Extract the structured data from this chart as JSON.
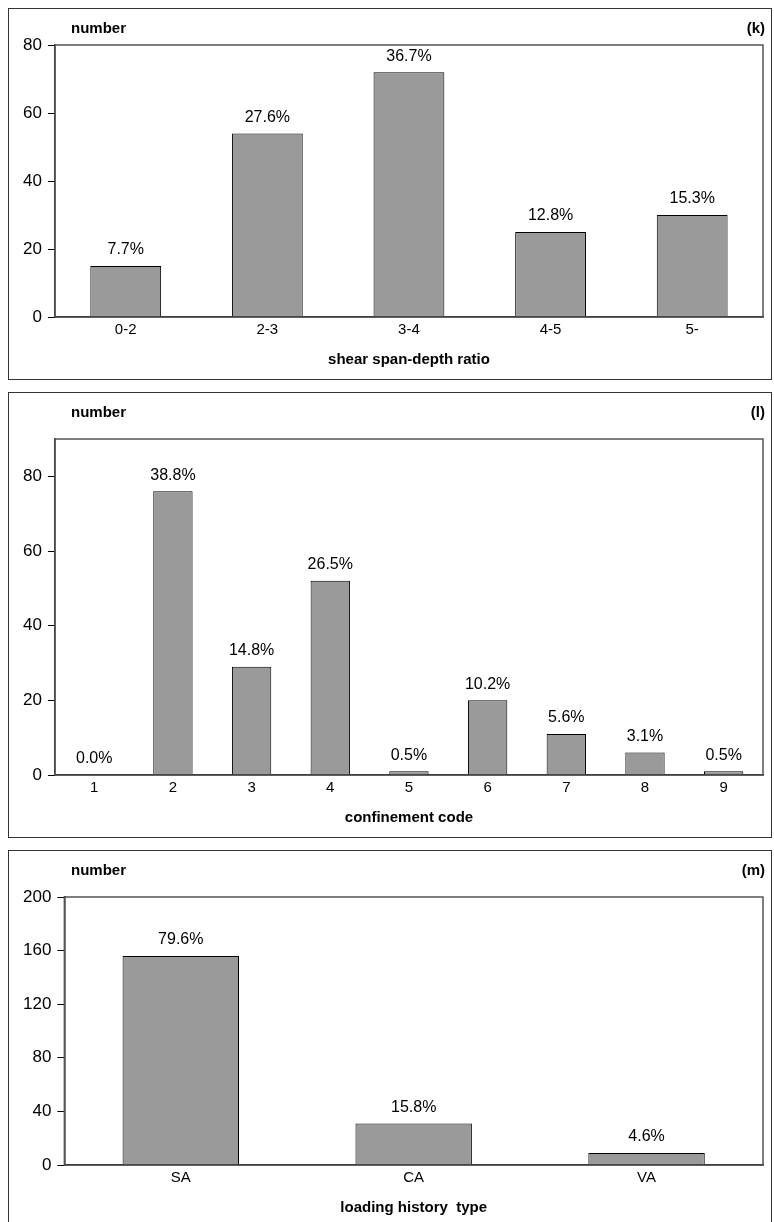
{
  "chart_data": [
    {
      "type": "bar",
      "ylabel": "number",
      "xlabel": "shear span-depth ratio",
      "categories": [
        "0-2",
        "2-3",
        "3-4",
        "4-5",
        "5-"
      ],
      "values": [
        15,
        54,
        72,
        25,
        30
      ],
      "color": "#9a9a9a",
      "ylim": [
        0,
        80
      ],
      "yticks": [
        0,
        20,
        40,
        60,
        80
      ],
      "grid": false,
      "legend": false,
      "annotations": [
        "(k)",
        {
          "text": "7.7%",
          "x": "0-2",
          "y": 15
        },
        {
          "text": "27.6%",
          "x": "2-3",
          "y": 54
        },
        {
          "text": "36.7%",
          "x": "3-4",
          "y": 72
        },
        {
          "text": "12.8%",
          "x": "4-5",
          "y": 25
        },
        {
          "text": "15.3%",
          "x": "5-",
          "y": 30
        }
      ]
    },
    {
      "type": "bar",
      "ylabel": "number",
      "xlabel": "confinement code",
      "categories": [
        "1",
        "2",
        "3",
        "4",
        "5",
        "6",
        "7",
        "8",
        "9"
      ],
      "values": [
        0,
        76,
        29,
        52,
        1,
        20,
        11,
        6,
        1
      ],
      "color": "#9a9a9a",
      "ylim": [
        0,
        90
      ],
      "yticks": [
        0,
        20,
        40,
        60,
        80
      ],
      "grid": false,
      "legend": false,
      "annotations": [
        "(l)",
        {
          "text": "0.0%",
          "x": "1",
          "y": 0
        },
        {
          "text": "38.8%",
          "x": "2",
          "y": 76
        },
        {
          "text": "14.8%",
          "x": "3",
          "y": 29
        },
        {
          "text": "26.5%",
          "x": "4",
          "y": 52
        },
        {
          "text": "0.5%",
          "x": "5",
          "y": 1
        },
        {
          "text": "10.2%",
          "x": "6",
          "y": 20
        },
        {
          "text": "5.6%",
          "x": "7",
          "y": 11
        },
        {
          "text": "3.1%",
          "x": "8",
          "y": 6
        },
        {
          "text": "0.5%",
          "x": "9",
          "y": 1
        }
      ]
    },
    {
      "type": "bar",
      "ylabel": "number",
      "xlabel": "loading history  type",
      "categories": [
        "SA",
        "CA",
        "VA"
      ],
      "values": [
        156,
        31,
        9
      ],
      "color": "#9a9a9a",
      "ylim": [
        0,
        200
      ],
      "yticks": [
        0,
        40,
        80,
        120,
        160,
        200
      ],
      "grid": false,
      "legend": false,
      "annotations": [
        "(m)",
        {
          "text": "79.6%",
          "x": "SA",
          "y": 156
        },
        {
          "text": "15.8%",
          "x": "CA",
          "y": 31
        },
        {
          "text": "4.6%",
          "x": "VA",
          "y": 9
        }
      ]
    }
  ]
}
